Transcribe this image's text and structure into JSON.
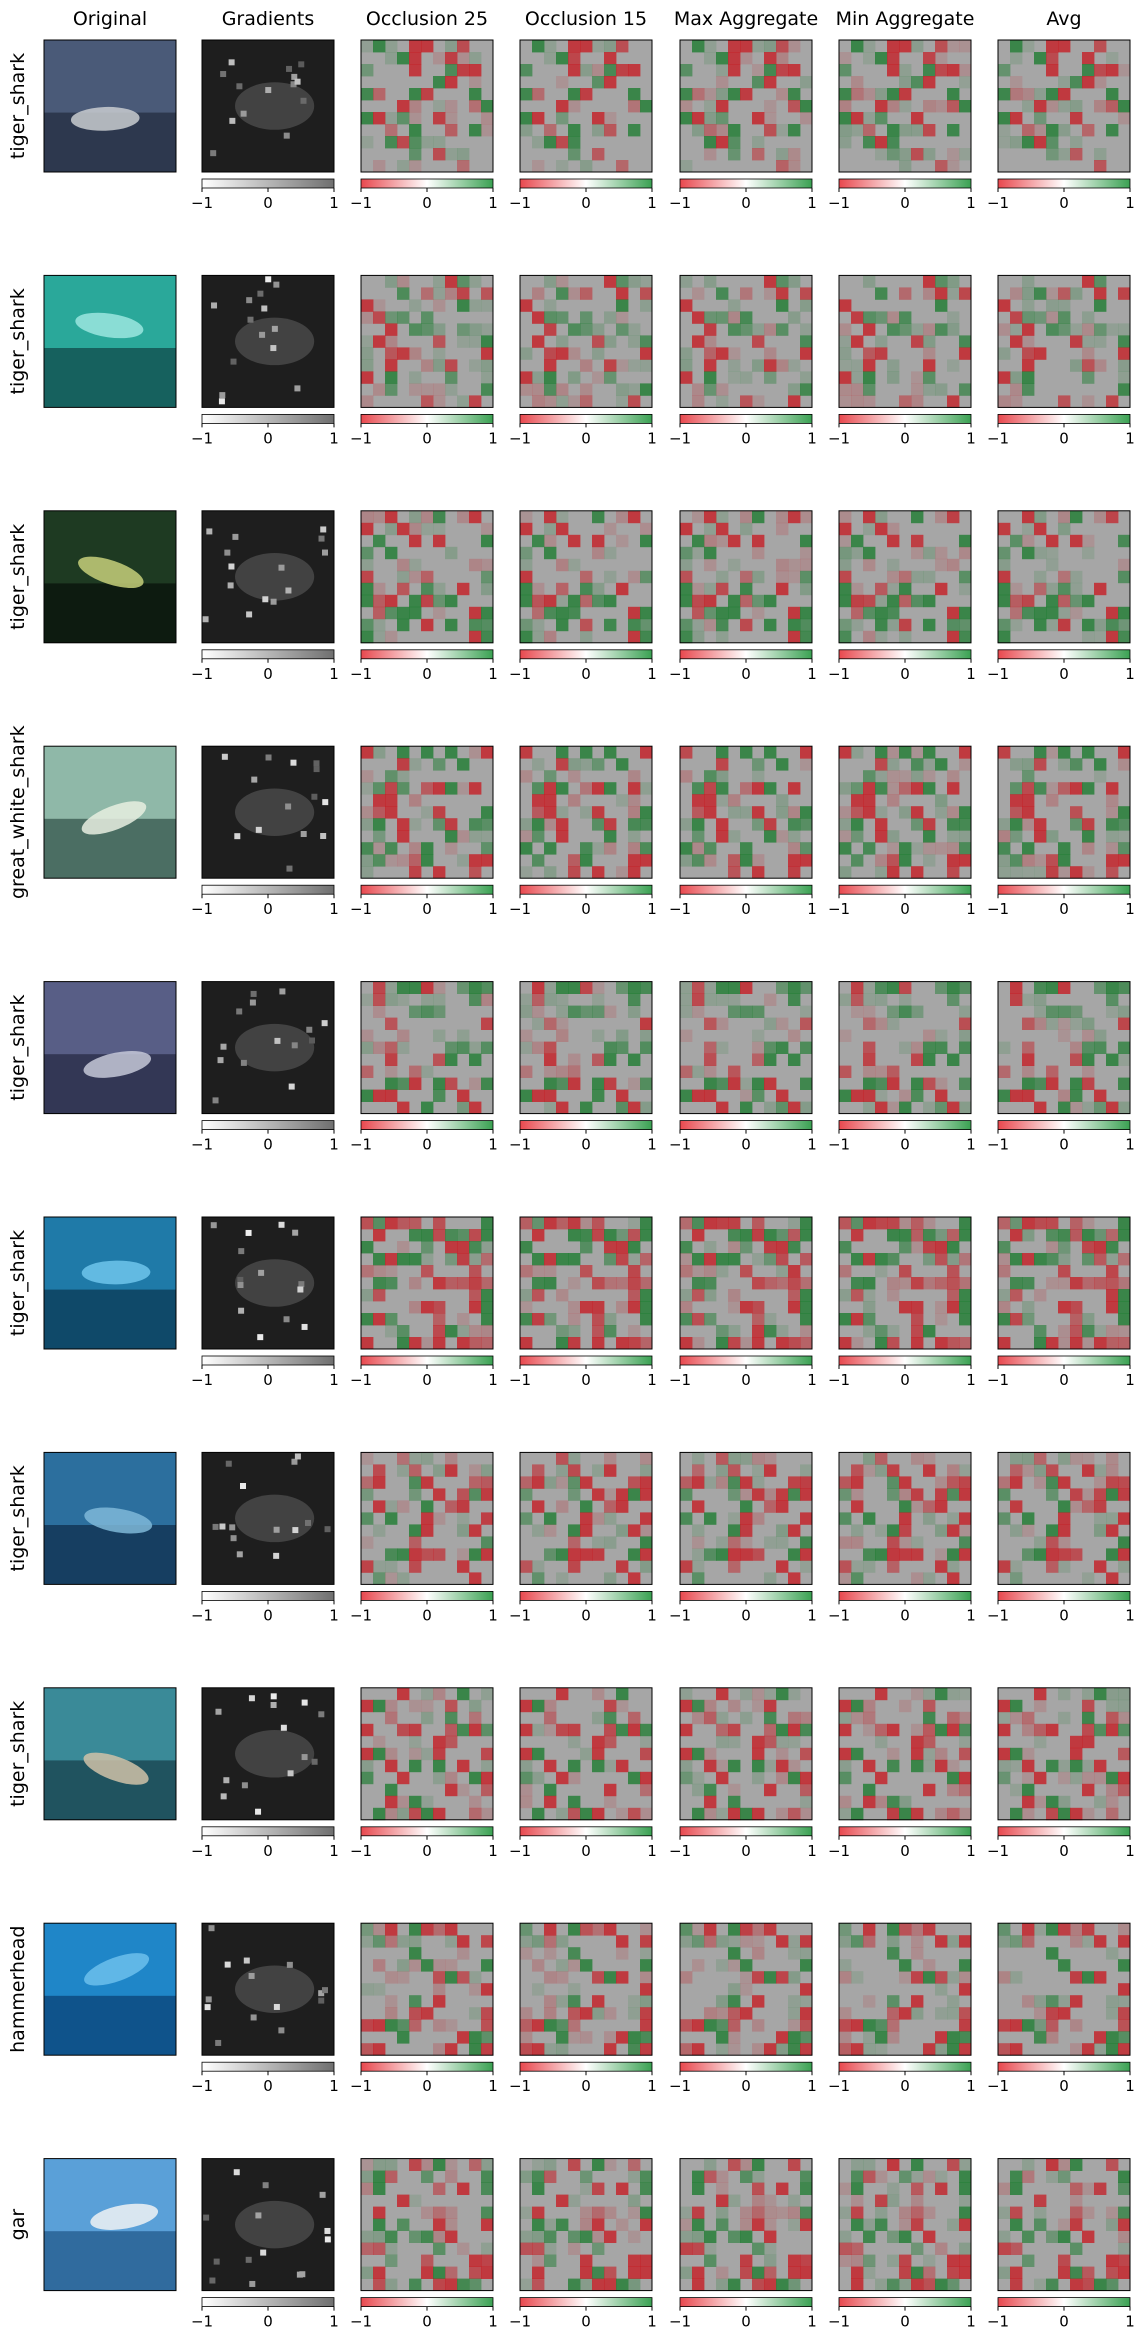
{
  "chart_data": {
    "type": "heatmap",
    "columns": [
      "Original",
      "Gradients",
      "Occlusion 25",
      "Occlusion 15",
      "Max Aggregate",
      "Min Aggregate",
      "Avg"
    ],
    "rows": [
      "tiger_shark",
      "tiger_shark",
      "tiger_shark",
      "great_white_shark",
      "tiger_shark",
      "tiger_shark",
      "tiger_shark",
      "tiger_shark",
      "hammerhead",
      "gar"
    ],
    "colorbar": {
      "range": [
        -1,
        1
      ],
      "tick_labels": [
        "−1",
        "0",
        "1"
      ],
      "gradients_colors": [
        "#ffffff",
        "#6f6f6f"
      ],
      "attribution_colors": {
        "negative": "#e8484e",
        "neutral": "#ffffff",
        "positive": "#3aa152"
      }
    },
    "thumbnail_palettes": [
      [
        "#4a5a78",
        "#1d2638",
        "#c9ccd0"
      ],
      [
        "#2aa89a",
        "#0d3a3e",
        "#9be6df"
      ],
      [
        "#1e3a22",
        "#050a08",
        "#c7d07a"
      ],
      [
        "#8fb8a8",
        "#26463e",
        "#e8efe0"
      ],
      [
        "#585e86",
        "#20223a",
        "#c6c8d8"
      ],
      [
        "#1f7aa8",
        "#083047",
        "#6fc6ec"
      ],
      [
        "#2c6f9e",
        "#0b2440",
        "#7fb8d8"
      ],
      [
        "#3a8a98",
        "#123640",
        "#d0c2a8"
      ],
      [
        "#1f86c8",
        "#08386a",
        "#6cc0ec"
      ],
      [
        "#5aa0d8",
        "#1a4f80",
        "#f0f2f4"
      ]
    ]
  }
}
